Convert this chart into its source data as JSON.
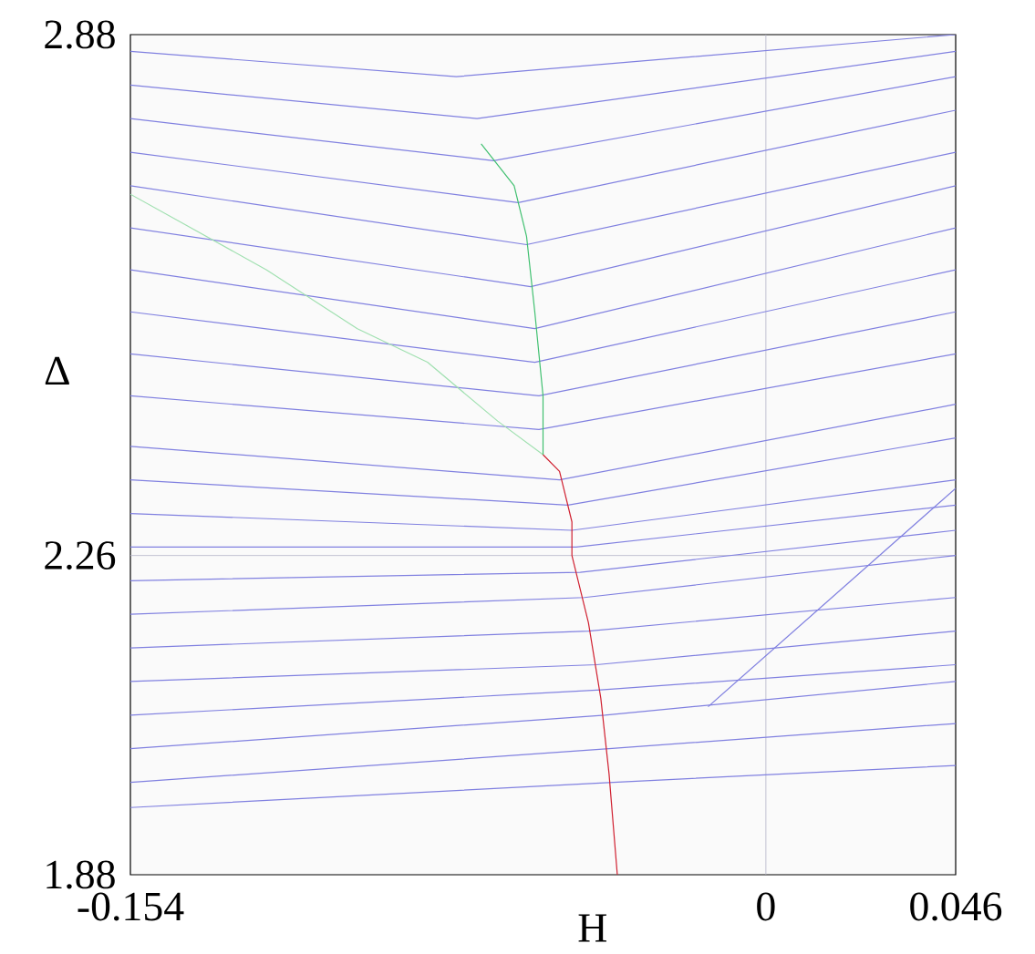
{
  "chart_data": {
    "type": "line",
    "xlabel": "H",
    "ylabel": "Δ",
    "xlim": [
      -0.154,
      0.046
    ],
    "ylim": [
      1.88,
      2.88
    ],
    "xticks": [
      -0.154,
      0,
      0.046
    ],
    "yticks": [
      1.88,
      2.26,
      2.88
    ],
    "ref_lines": [
      {
        "axis": "x",
        "value": 0,
        "color": "#b4b4c8"
      },
      {
        "axis": "y",
        "value": 2.26,
        "color": "#b4b4c8"
      }
    ],
    "series": [
      {
        "color": "#8080e0",
        "x": [
          -0.154,
          -0.037,
          0.046
        ],
        "values": [
          1.96,
          1.99,
          2.01
        ]
      },
      {
        "color": "#8080e0",
        "x": [
          -0.154,
          -0.038,
          0.046
        ],
        "values": [
          1.99,
          2.03,
          2.06
        ]
      },
      {
        "color": "#8080e0",
        "x": [
          -0.154,
          -0.039,
          0.046
        ],
        "values": [
          2.03,
          2.07,
          2.11
        ]
      },
      {
        "color": "#8080e0",
        "x": [
          -0.154,
          -0.04,
          0.046
        ],
        "values": [
          2.07,
          2.1,
          2.13
        ]
      },
      {
        "color": "#8080e0",
        "x": [
          -0.154,
          -0.041,
          0.046
        ],
        "values": [
          2.11,
          2.13,
          2.17
        ]
      },
      {
        "color": "#8080e0",
        "x": [
          -0.154,
          -0.043,
          0.046
        ],
        "values": [
          2.15,
          2.17,
          2.21
        ]
      },
      {
        "color": "#8080e0",
        "x": [
          -0.154,
          -0.044,
          0.046
        ],
        "values": [
          2.19,
          2.21,
          2.26
        ]
      },
      {
        "color": "#8080e0",
        "x": [
          -0.154,
          -0.045,
          0.046
        ],
        "values": [
          2.23,
          2.24,
          2.29
        ]
      },
      {
        "color": "#8080e0",
        "x": [
          -0.154,
          -0.046,
          0.046
        ],
        "values": [
          2.27,
          2.27,
          2.32
        ]
      },
      {
        "color": "#8080e0",
        "x": [
          -0.154,
          -0.047,
          0.046
        ],
        "values": [
          2.31,
          2.29,
          2.35
        ]
      },
      {
        "color": "#8080e0",
        "x": [
          -0.154,
          -0.048,
          0.046
        ],
        "values": [
          2.35,
          2.32,
          2.4
        ]
      },
      {
        "color": "#8080e0",
        "x": [
          -0.154,
          -0.05,
          0.046
        ],
        "values": [
          2.39,
          2.35,
          2.44
        ]
      },
      {
        "color": "#8080e0",
        "x": [
          -0.154,
          -0.055,
          0.046
        ],
        "values": [
          2.45,
          2.41,
          2.5
        ]
      },
      {
        "color": "#8080e0",
        "x": [
          -0.154,
          -0.055,
          0.046
        ],
        "values": [
          2.5,
          2.45,
          2.55
        ]
      },
      {
        "color": "#8080e0",
        "x": [
          -0.154,
          -0.056,
          0.046
        ],
        "values": [
          2.55,
          2.49,
          2.6
        ]
      },
      {
        "color": "#8080e0",
        "x": [
          -0.154,
          -0.056,
          0.046
        ],
        "values": [
          2.6,
          2.53,
          2.65
        ]
      },
      {
        "color": "#8080e0",
        "x": [
          -0.154,
          -0.057,
          0.046
        ],
        "values": [
          2.65,
          2.58,
          2.7
        ]
      },
      {
        "color": "#8080e0",
        "x": [
          -0.154,
          -0.058,
          0.046
        ],
        "values": [
          2.7,
          2.63,
          2.74
        ]
      },
      {
        "color": "#8080e0",
        "x": [
          -0.154,
          -0.06,
          0.046
        ],
        "values": [
          2.74,
          2.68,
          2.79
        ]
      },
      {
        "color": "#8080e0",
        "x": [
          -0.154,
          -0.066,
          0.046
        ],
        "values": [
          2.78,
          2.73,
          2.83
        ]
      },
      {
        "color": "#8080e0",
        "x": [
          -0.154,
          -0.07,
          0.046
        ],
        "values": [
          2.82,
          2.78,
          2.86
        ]
      },
      {
        "color": "#8080e0",
        "x": [
          -0.154,
          -0.075,
          0.046
        ],
        "values": [
          2.86,
          2.83,
          2.88
        ]
      },
      {
        "color": "#8080e0",
        "x": [
          -0.014,
          0.046
        ],
        "values": [
          2.08,
          2.34
        ]
      },
      {
        "color": "#a0e0b0",
        "x": [
          -0.054,
          -0.065,
          -0.082,
          -0.099,
          -0.121,
          -0.154
        ],
        "values": [
          2.38,
          2.42,
          2.49,
          2.53,
          2.6,
          2.69
        ]
      },
      {
        "color": "#40c070",
        "x": [
          -0.054,
          -0.054,
          -0.056,
          -0.058,
          -0.061,
          -0.069
        ],
        "values": [
          2.38,
          2.45,
          2.55,
          2.64,
          2.7,
          2.75
        ]
      },
      {
        "color": "#d02030",
        "x": [
          -0.036,
          -0.038,
          -0.04,
          -0.043,
          -0.047,
          -0.047,
          -0.05,
          -0.054
        ],
        "values": [
          1.88,
          2.0,
          2.09,
          2.18,
          2.26,
          2.3,
          2.36,
          2.38
        ]
      }
    ]
  }
}
